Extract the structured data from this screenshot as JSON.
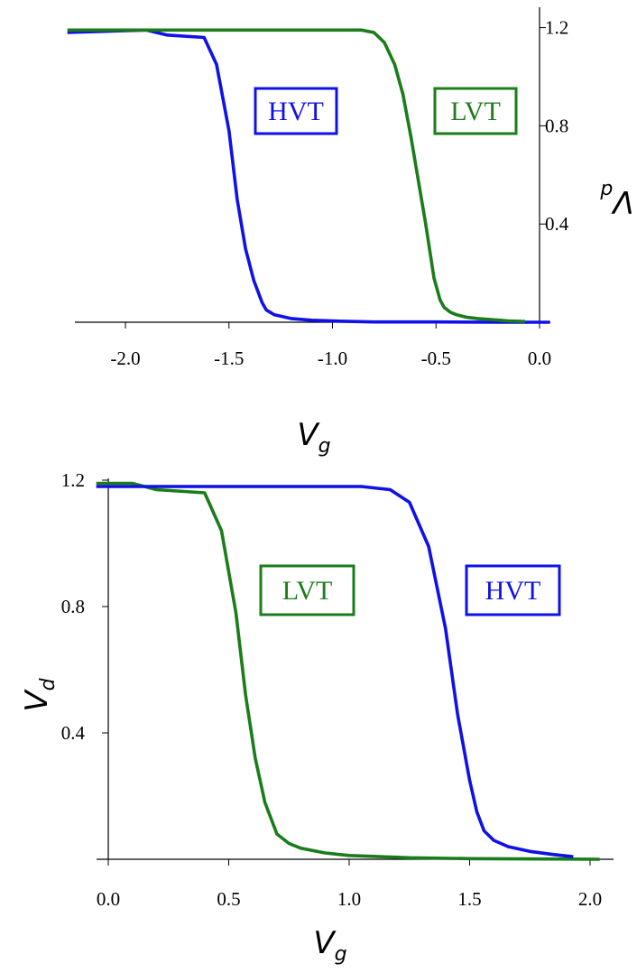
{
  "colors": {
    "hvt": "#1010e8",
    "lvt": "#1a7d1a",
    "axis": "#000000"
  },
  "chart_data": [
    {
      "type": "line",
      "title": "",
      "ylabel_main": "V",
      "ylabel_sub": "d",
      "ylabel_orientation": "rotated-180",
      "xlabel_main": "V",
      "xlabel_sub": "g",
      "xlim": [
        -2.28,
        0.05
      ],
      "ylim": [
        0.0,
        1.22
      ],
      "xticks": [
        -2.0,
        -1.5,
        -1.0,
        -0.5,
        0.0
      ],
      "xtick_labels": [
        "-2.0",
        "-1.5",
        "-1.0",
        "-0.5",
        "0.0"
      ],
      "yticks": [
        0.4,
        0.8,
        1.2
      ],
      "ytick_labels": [
        "0.4",
        "0.8",
        "1.2"
      ],
      "y_axis_side": "right",
      "grid": false,
      "series": [
        {
          "name": "HVT",
          "color_key": "hvt",
          "x": [
            -2.28,
            -1.9,
            -1.8,
            -1.62,
            -1.56,
            -1.5,
            -1.46,
            -1.42,
            -1.38,
            -1.34,
            -1.32,
            -1.28,
            -1.2,
            -1.1,
            -0.95,
            -0.8,
            -0.5,
            -0.2,
            0.05
          ],
          "y": [
            1.18,
            1.19,
            1.17,
            1.16,
            1.05,
            0.78,
            0.5,
            0.3,
            0.17,
            0.08,
            0.05,
            0.03,
            0.015,
            0.008,
            0.004,
            0.001,
            0.001,
            0.0,
            0.0
          ]
        },
        {
          "name": "LVT",
          "color_key": "lvt",
          "x": [
            -2.28,
            -1.9,
            -1.0,
            -0.86,
            -0.8,
            -0.75,
            -0.7,
            -0.66,
            -0.62,
            -0.58,
            -0.55,
            -0.51,
            -0.48,
            -0.46,
            -0.43,
            -0.4,
            -0.35,
            -0.3,
            -0.22,
            -0.15,
            -0.07
          ],
          "y": [
            1.19,
            1.19,
            1.19,
            1.19,
            1.18,
            1.14,
            1.05,
            0.93,
            0.75,
            0.55,
            0.4,
            0.18,
            0.09,
            0.06,
            0.04,
            0.03,
            0.02,
            0.015,
            0.01,
            0.005,
            0.003
          ]
        }
      ],
      "annotations": [
        {
          "text": "HVT",
          "color_key": "hvt"
        },
        {
          "text": "LVT",
          "color_key": "lvt"
        }
      ]
    },
    {
      "type": "line",
      "title": "",
      "ylabel_main": "V",
      "ylabel_sub": "d",
      "ylabel_orientation": "rotated-90",
      "xlabel_main": "V",
      "xlabel_sub": "g",
      "xlim": [
        -0.05,
        2.15
      ],
      "ylim": [
        0.0,
        1.22
      ],
      "xticks": [
        0.0,
        0.5,
        1.0,
        1.5,
        2.0
      ],
      "xtick_labels": [
        "0.0",
        "0.5",
        "1.0",
        "1.5",
        "2.0"
      ],
      "yticks": [
        0.4,
        0.8,
        1.2
      ],
      "ytick_labels": [
        "0.4",
        "0.8",
        "1.2"
      ],
      "y_axis_side": "left",
      "grid": false,
      "series": [
        {
          "name": "LVT",
          "color_key": "lvt",
          "x": [
            -0.05,
            0.1,
            0.2,
            0.4,
            0.47,
            0.53,
            0.57,
            0.61,
            0.65,
            0.7,
            0.75,
            0.8,
            0.9,
            1.0,
            1.25,
            1.5,
            2.04
          ],
          "y": [
            1.19,
            1.19,
            1.17,
            1.16,
            1.04,
            0.78,
            0.52,
            0.32,
            0.18,
            0.08,
            0.05,
            0.035,
            0.02,
            0.012,
            0.005,
            0.002,
            0.0
          ]
        },
        {
          "name": "HVT",
          "color_key": "hvt",
          "x": [
            -0.05,
            0.9,
            1.05,
            1.17,
            1.25,
            1.33,
            1.4,
            1.45,
            1.5,
            1.53,
            1.56,
            1.6,
            1.66,
            1.75,
            1.85,
            1.93
          ],
          "y": [
            1.18,
            1.18,
            1.18,
            1.17,
            1.13,
            0.99,
            0.73,
            0.46,
            0.25,
            0.15,
            0.09,
            0.06,
            0.04,
            0.025,
            0.015,
            0.008
          ]
        }
      ],
      "annotations": [
        {
          "text": "LVT",
          "color_key": "lvt"
        },
        {
          "text": "HVT",
          "color_key": "hvt"
        }
      ]
    }
  ]
}
